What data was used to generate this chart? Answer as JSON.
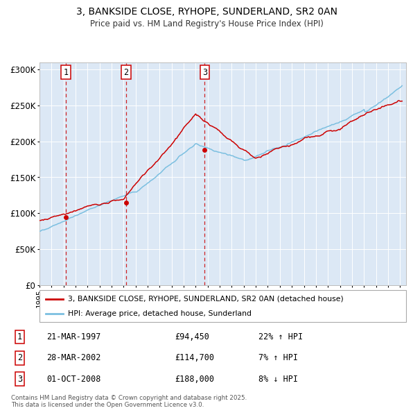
{
  "title_line1": "3, BANKSIDE CLOSE, RYHOPE, SUNDERLAND, SR2 0AN",
  "title_line2": "Price paid vs. HM Land Registry's House Price Index (HPI)",
  "ylim": [
    0,
    310000
  ],
  "yticks": [
    0,
    50000,
    100000,
    150000,
    200000,
    250000,
    300000
  ],
  "ytick_labels": [
    "£0",
    "£50K",
    "£100K",
    "£150K",
    "£200K",
    "£250K",
    "£300K"
  ],
  "plot_bg_color": "#dce8f5",
  "sale_color": "#cc0000",
  "hpi_color": "#7bbfe0",
  "vline_color": "#cc0000",
  "legend_sale_label": "3, BANKSIDE CLOSE, RYHOPE, SUNDERLAND, SR2 0AN (detached house)",
  "legend_hpi_label": "HPI: Average price, detached house, Sunderland",
  "table_rows": [
    {
      "num": "1",
      "date": "21-MAR-1997",
      "price": "£94,450",
      "pct": "22% ↑ HPI"
    },
    {
      "num": "2",
      "date": "28-MAR-2002",
      "price": "£114,700",
      "pct": "7% ↑ HPI"
    },
    {
      "num": "3",
      "date": "01-OCT-2008",
      "price": "£188,000",
      "pct": "8% ↓ HPI"
    }
  ],
  "footnote": "Contains HM Land Registry data © Crown copyright and database right 2025.\nThis data is licensed under the Open Government Licence v3.0.",
  "xmin": 1995,
  "xmax": 2025.5
}
